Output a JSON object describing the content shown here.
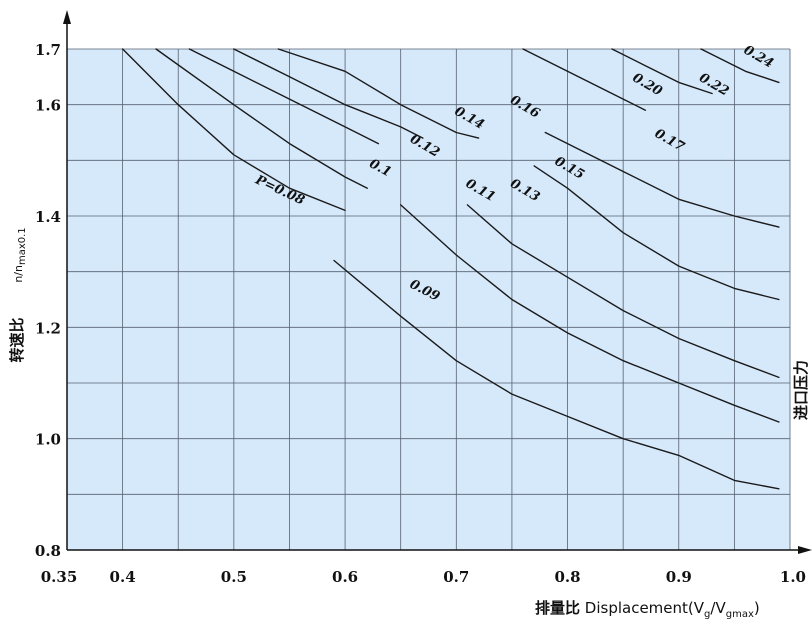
{
  "chart_data": {
    "type": "line",
    "title": "",
    "xlabel_cn": "排量比",
    "xlabel_en": "Displacement",
    "xlabel_formula": {
      "open": "(V",
      "sub1": "g",
      "slash": "/V",
      "sub2": "gmax",
      "close": ")"
    },
    "ylabel_cn": "转速比",
    "ylabel_formula": {
      "main": "n/n",
      "sub": "max0.1"
    },
    "right_label_cn": "进口压力",
    "xlim": [
      0.35,
      1.0
    ],
    "ylim": [
      0.8,
      1.7
    ],
    "x_ticks": [
      0.35,
      0.4,
      0.5,
      0.6,
      0.7,
      0.8,
      0.9,
      1.0
    ],
    "x_tick_labels": [
      "0.35",
      "0.4",
      "0.5",
      "0.6",
      "0.7",
      "0.8",
      "0.9",
      "1.0"
    ],
    "y_ticks": [
      0.8,
      1.0,
      1.2,
      1.4,
      1.6,
      1.7
    ],
    "y_tick_labels": [
      "0.8",
      "1.0",
      "1.2",
      "1.4",
      "1.6",
      "1.7"
    ],
    "grid": true,
    "background_color": "#d6e9fb",
    "line_color": "#1a1a1a",
    "series": [
      {
        "name": "P=0.08",
        "points": [
          [
            0.4,
            1.7
          ],
          [
            0.45,
            1.6
          ],
          [
            0.5,
            1.51
          ],
          [
            0.55,
            1.45
          ],
          [
            0.6,
            1.41
          ]
        ]
      },
      {
        "name": "0.09",
        "points": [
          [
            0.59,
            1.32
          ],
          [
            0.65,
            1.22
          ],
          [
            0.7,
            1.14
          ],
          [
            0.75,
            1.08
          ],
          [
            0.8,
            1.04
          ],
          [
            0.85,
            1.0
          ],
          [
            0.9,
            0.97
          ],
          [
            0.95,
            0.925
          ],
          [
            0.99,
            0.91
          ]
        ]
      },
      {
        "name": "0.1",
        "points": [
          [
            0.43,
            1.7
          ],
          [
            0.5,
            1.6
          ],
          [
            0.55,
            1.53
          ],
          [
            0.6,
            1.47
          ],
          [
            0.62,
            1.45
          ]
        ]
      },
      {
        "name": "0.11",
        "points": [
          [
            0.65,
            1.42
          ],
          [
            0.7,
            1.33
          ],
          [
            0.75,
            1.25
          ],
          [
            0.8,
            1.19
          ],
          [
            0.85,
            1.14
          ],
          [
            0.9,
            1.1
          ],
          [
            0.95,
            1.06
          ],
          [
            0.99,
            1.03
          ]
        ]
      },
      {
        "name": "0.12",
        "points": [
          [
            0.46,
            1.7
          ],
          [
            0.5,
            1.66
          ],
          [
            0.55,
            1.61
          ],
          [
            0.6,
            1.56
          ],
          [
            0.63,
            1.53
          ]
        ]
      },
      {
        "name": "0.13",
        "points": [
          [
            0.71,
            1.42
          ],
          [
            0.75,
            1.35
          ],
          [
            0.8,
            1.29
          ],
          [
            0.85,
            1.23
          ],
          [
            0.9,
            1.18
          ],
          [
            0.95,
            1.14
          ],
          [
            0.99,
            1.11
          ]
        ]
      },
      {
        "name": "0.14",
        "points": [
          [
            0.5,
            1.7
          ],
          [
            0.55,
            1.65
          ],
          [
            0.6,
            1.6
          ],
          [
            0.65,
            1.56
          ],
          [
            0.67,
            1.54
          ]
        ]
      },
      {
        "name": "0.15",
        "points": [
          [
            0.77,
            1.49
          ],
          [
            0.8,
            1.45
          ],
          [
            0.85,
            1.37
          ],
          [
            0.9,
            1.31
          ],
          [
            0.95,
            1.27
          ],
          [
            0.99,
            1.25
          ]
        ]
      },
      {
        "name": "0.16",
        "points": [
          [
            0.54,
            1.7
          ],
          [
            0.6,
            1.66
          ],
          [
            0.65,
            1.6
          ],
          [
            0.7,
            1.55
          ],
          [
            0.72,
            1.54
          ]
        ]
      },
      {
        "name": "0.17",
        "points": [
          [
            0.78,
            1.55
          ],
          [
            0.8,
            1.53
          ],
          [
            0.85,
            1.48
          ],
          [
            0.9,
            1.43
          ],
          [
            0.95,
            1.4
          ],
          [
            0.99,
            1.38
          ]
        ]
      },
      {
        "name": "0.20",
        "points": [
          [
            0.76,
            1.7
          ],
          [
            0.8,
            1.66
          ],
          [
            0.85,
            1.61
          ],
          [
            0.87,
            1.59
          ]
        ]
      },
      {
        "name": "0.22",
        "points": [
          [
            0.84,
            1.7
          ],
          [
            0.87,
            1.67
          ],
          [
            0.9,
            1.64
          ],
          [
            0.93,
            1.62
          ]
        ]
      },
      {
        "name": "0.24",
        "points": [
          [
            0.92,
            1.7
          ],
          [
            0.96,
            1.66
          ],
          [
            0.99,
            1.64
          ]
        ]
      }
    ],
    "curve_labels": [
      {
        "text": "P=0.08",
        "x": 0.54,
        "y": 1.44,
        "angle": 25
      },
      {
        "text": "0.09",
        "x": 0.67,
        "y": 1.26,
        "angle": 27
      },
      {
        "text": "0.1",
        "x": 0.63,
        "y": 1.48,
        "angle": 28
      },
      {
        "text": "0.11",
        "x": 0.72,
        "y": 1.44,
        "angle": 30
      },
      {
        "text": "0.12",
        "x": 0.67,
        "y": 1.52,
        "angle": 30
      },
      {
        "text": "0.13",
        "x": 0.76,
        "y": 1.44,
        "angle": 30
      },
      {
        "text": "0.14",
        "x": 0.71,
        "y": 1.57,
        "angle": 30
      },
      {
        "text": "0.15",
        "x": 0.8,
        "y": 1.48,
        "angle": 30
      },
      {
        "text": "0.16",
        "x": 0.76,
        "y": 1.59,
        "angle": 30
      },
      {
        "text": "0.17",
        "x": 0.89,
        "y": 1.53,
        "angle": 30
      },
      {
        "text": "0.20",
        "x": 0.87,
        "y": 1.63,
        "angle": 30
      },
      {
        "text": "0.22",
        "x": 0.93,
        "y": 1.63,
        "angle": 30
      },
      {
        "text": "0.24",
        "x": 0.97,
        "y": 1.68,
        "angle": 30
      }
    ]
  }
}
